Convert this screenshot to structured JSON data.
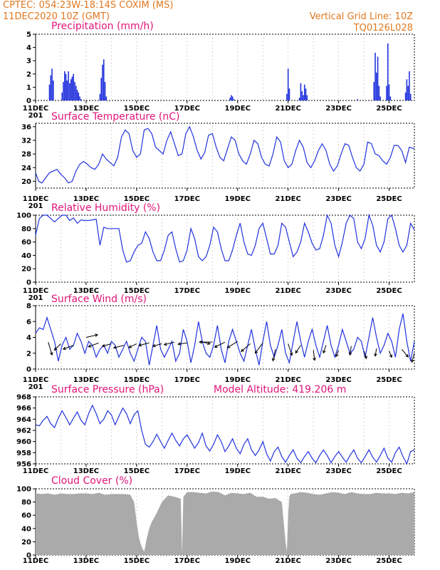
{
  "header": {
    "left_line1": "CPTEC:   054:23W-18:14S   COXIM (MS)",
    "left_line2": "11DEC2020 10Z (GMT)",
    "right_line1": "Vertical Grid Line: 10Z",
    "right_line2": "TQ0126L028"
  },
  "colors": {
    "header_text": "#e07820",
    "panel_title": "#e0157a",
    "series_line": "#2233dd",
    "precip_bar": "#2233dd",
    "cloud_fill": "#aaaaaa",
    "wind_arrow": "#000000"
  },
  "x_ticks": [
    "11DEC",
    "13DEC",
    "15DEC",
    "17DEC",
    "19DEC",
    "21DEC",
    "23DEC",
    "25DEC"
  ],
  "x_range_days": [
    0,
    15
  ],
  "chart_data": [
    {
      "id": "precip",
      "type": "bar",
      "title": "Precipitation (mm/h)",
      "ylim": [
        0,
        5
      ],
      "yticks": [
        "0",
        "1",
        "2",
        "3",
        "4",
        "5"
      ],
      "yticks_num": [
        0,
        1,
        2,
        3,
        4,
        5
      ],
      "grid": "dashed-daily",
      "xticks_extra": "201",
      "x": [
        0.55,
        0.6,
        0.65,
        0.7,
        1.05,
        1.1,
        1.15,
        1.2,
        1.25,
        1.3,
        1.35,
        1.4,
        1.45,
        1.5,
        1.55,
        1.6,
        1.65,
        1.7,
        1.75,
        1.8,
        2.55,
        2.6,
        2.65,
        2.7,
        2.75,
        2.8,
        7.7,
        7.75,
        7.8,
        7.85,
        9.95,
        10.0,
        10.05,
        10.45,
        10.5,
        10.55,
        10.6,
        10.65,
        10.7,
        10.75,
        12.75,
        13.4,
        13.45,
        13.5,
        13.55,
        13.6,
        13.65,
        13.9,
        13.95,
        14.0,
        14.05,
        14.65,
        14.7,
        14.75,
        14.8,
        14.85
      ],
      "values": [
        1.2,
        1.9,
        2.4,
        1.5,
        0.6,
        1.4,
        2.2,
        2.0,
        1.5,
        2.2,
        1.3,
        1.6,
        1.8,
        2.0,
        1.4,
        1.1,
        0.8,
        0.6,
        0.3,
        0.1,
        0.5,
        1.7,
        2.7,
        3.1,
        1.4,
        0.3,
        0.2,
        0.4,
        0.3,
        0.1,
        0.5,
        2.4,
        0.9,
        0.2,
        1.3,
        0.7,
        0.4,
        1.2,
        0.9,
        0.4,
        0.1,
        1.4,
        3.6,
        2.1,
        3.3,
        1.1,
        0.3,
        1.1,
        4.3,
        1.2,
        0.3,
        0.6,
        1.6,
        1.1,
        2.2,
        0.5
      ]
    },
    {
      "id": "temp",
      "type": "line",
      "title": "Surface Temperature (nC)",
      "ylim": [
        18,
        37
      ],
      "yticks": [
        "20",
        "24",
        "28",
        "32",
        "36"
      ],
      "yticks_num": [
        20,
        24,
        28,
        32,
        36
      ],
      "xticks_extra": "201",
      "x": [
        0,
        0.12,
        0.25,
        0.4,
        0.55,
        0.7,
        0.85,
        1.0,
        1.15,
        1.3,
        1.45,
        1.6,
        1.75,
        1.9,
        2.05,
        2.2,
        2.35,
        2.5,
        2.65,
        2.8,
        2.95,
        3.1,
        3.25,
        3.4,
        3.55,
        3.7,
        3.85,
        4.0,
        4.15,
        4.3,
        4.45,
        4.6,
        4.75,
        4.9,
        5.05,
        5.2,
        5.35,
        5.5,
        5.65,
        5.8,
        5.95,
        6.1,
        6.25,
        6.4,
        6.55,
        6.7,
        6.85,
        7.0,
        7.15,
        7.3,
        7.45,
        7.6,
        7.75,
        7.9,
        8.05,
        8.2,
        8.35,
        8.5,
        8.65,
        8.8,
        8.95,
        9.1,
        9.25,
        9.4,
        9.55,
        9.7,
        9.85,
        10.0,
        10.15,
        10.3,
        10.45,
        10.6,
        10.75,
        10.9,
        11.05,
        11.2,
        11.35,
        11.5,
        11.65,
        11.8,
        11.95,
        12.1,
        12.25,
        12.4,
        12.55,
        12.7,
        12.85,
        13.0,
        13.15,
        13.3,
        13.45,
        13.6,
        13.75,
        13.9,
        14.05,
        14.2,
        14.35,
        14.5,
        14.65,
        14.8,
        15.0
      ],
      "values": [
        22.5,
        20,
        19.5,
        21,
        22.5,
        23,
        23.5,
        22,
        21,
        19.5,
        20,
        23,
        25,
        25.8,
        25,
        24,
        23.5,
        25,
        28,
        26.5,
        25.5,
        24.5,
        27,
        33,
        35,
        34,
        29,
        27,
        28,
        35,
        35.5,
        34,
        30,
        29,
        28,
        32,
        34.5,
        31,
        27.5,
        28,
        34,
        36,
        33,
        29,
        26.5,
        28.5,
        33.5,
        34,
        30,
        27,
        26,
        29.5,
        33,
        32,
        28,
        26,
        25,
        28,
        32,
        31,
        27,
        25,
        24.5,
        28,
        33,
        31.5,
        26,
        24,
        25,
        29,
        32,
        30,
        25.5,
        24,
        26,
        29,
        31,
        29,
        25,
        23,
        24.5,
        28,
        31,
        30.5,
        27,
        24,
        23,
        25,
        31.5,
        31,
        28,
        27.5,
        26,
        25,
        27,
        30.5,
        30.5,
        29,
        25.5,
        30,
        29.5
      ]
    },
    {
      "id": "rh",
      "type": "line",
      "title": "Relative Humidity (%)",
      "ylim": [
        0,
        100
      ],
      "yticks": [
        "0",
        "20",
        "40",
        "60",
        "80",
        "100"
      ],
      "yticks_num": [
        0,
        20,
        40,
        60,
        80,
        100
      ],
      "xticks_extra": "201",
      "x": [
        0,
        0.15,
        0.3,
        0.45,
        0.6,
        0.75,
        0.9,
        1.05,
        1.2,
        1.35,
        1.5,
        1.65,
        1.8,
        1.95,
        2.1,
        2.25,
        2.4,
        2.55,
        2.7,
        2.85,
        3.0,
        3.15,
        3.3,
        3.45,
        3.6,
        3.75,
        3.9,
        4.05,
        4.2,
        4.35,
        4.5,
        4.65,
        4.8,
        4.95,
        5.1,
        5.25,
        5.4,
        5.55,
        5.7,
        5.85,
        6.0,
        6.15,
        6.3,
        6.45,
        6.6,
        6.75,
        6.9,
        7.05,
        7.2,
        7.35,
        7.5,
        7.65,
        7.8,
        7.95,
        8.1,
        8.25,
        8.4,
        8.55,
        8.7,
        8.85,
        9.0,
        9.15,
        9.3,
        9.45,
        9.6,
        9.75,
        9.9,
        10.05,
        10.2,
        10.35,
        10.5,
        10.65,
        10.8,
        10.95,
        11.1,
        11.25,
        11.4,
        11.55,
        11.7,
        11.85,
        12.0,
        12.15,
        12.3,
        12.45,
        12.6,
        12.75,
        12.9,
        13.05,
        13.2,
        13.35,
        13.5,
        13.65,
        13.8,
        13.95,
        14.1,
        14.25,
        14.4,
        14.55,
        14.7,
        14.85,
        15.0
      ],
      "values": [
        70,
        95,
        100,
        100,
        95,
        90,
        95,
        100,
        100,
        92,
        96,
        88,
        93,
        92,
        92,
        93,
        94,
        55,
        82,
        80,
        80,
        80,
        80,
        48,
        30,
        32,
        45,
        55,
        58,
        75,
        65,
        45,
        32,
        32,
        48,
        70,
        75,
        50,
        30,
        32,
        48,
        80,
        65,
        38,
        32,
        38,
        55,
        82,
        75,
        50,
        32,
        32,
        48,
        70,
        88,
        60,
        42,
        40,
        55,
        80,
        88,
        65,
        42,
        42,
        55,
        88,
        82,
        60,
        38,
        45,
        60,
        88,
        75,
        58,
        48,
        50,
        70,
        100,
        88,
        55,
        38,
        60,
        88,
        100,
        95,
        60,
        50,
        65,
        100,
        85,
        55,
        45,
        60,
        95,
        100,
        80,
        55,
        45,
        55,
        88,
        78
      ]
    },
    {
      "id": "wind",
      "type": "line",
      "title": "Surface Wind (m/s)",
      "ylim": [
        0,
        8
      ],
      "yticks": [
        "0",
        "2",
        "4",
        "6",
        "8"
      ],
      "yticks_num": [
        0,
        2,
        4,
        6,
        8
      ],
      "xticks_extra": "201",
      "x": [
        0,
        0.15,
        0.3,
        0.45,
        0.6,
        0.75,
        0.9,
        1.05,
        1.2,
        1.35,
        1.5,
        1.65,
        1.8,
        1.95,
        2.1,
        2.25,
        2.4,
        2.55,
        2.7,
        2.85,
        3.0,
        3.15,
        3.3,
        3.45,
        3.6,
        3.75,
        3.9,
        4.05,
        4.2,
        4.35,
        4.5,
        4.65,
        4.8,
        4.95,
        5.1,
        5.25,
        5.4,
        5.55,
        5.7,
        5.85,
        6.0,
        6.15,
        6.3,
        6.45,
        6.6,
        6.75,
        6.9,
        7.05,
        7.2,
        7.35,
        7.5,
        7.65,
        7.8,
        7.95,
        8.1,
        8.25,
        8.4,
        8.55,
        8.7,
        8.85,
        9.0,
        9.15,
        9.3,
        9.45,
        9.6,
        9.75,
        9.9,
        10.05,
        10.2,
        10.35,
        10.5,
        10.65,
        10.8,
        10.95,
        11.1,
        11.25,
        11.4,
        11.55,
        11.7,
        11.85,
        12.0,
        12.15,
        12.3,
        12.45,
        12.6,
        12.75,
        12.9,
        13.05,
        13.2,
        13.35,
        13.5,
        13.65,
        13.8,
        13.95,
        14.1,
        14.25,
        14.4,
        14.55,
        14.7,
        14.85,
        15.0
      ],
      "values": [
        4.5,
        5.2,
        5.0,
        6.5,
        5.0,
        3.5,
        1.0,
        3.0,
        4.0,
        2.5,
        3.0,
        4.5,
        3.5,
        2.0,
        3.5,
        3.0,
        1.5,
        2.5,
        3.0,
        2.0,
        3.5,
        3.0,
        1.5,
        2.5,
        3.5,
        2.0,
        1.0,
        2.5,
        4.0,
        3.5,
        0.5,
        3.0,
        5.5,
        2.5,
        1.5,
        2.5,
        3.5,
        1.0,
        2.0,
        5.0,
        3.5,
        0.8,
        3.0,
        6.0,
        3.5,
        2.0,
        1.5,
        3.0,
        5.5,
        2.5,
        0.8,
        3.5,
        5.0,
        3.5,
        2.0,
        1.0,
        3.0,
        5.0,
        2.5,
        0.5,
        3.5,
        6.0,
        3.0,
        1.5,
        3.0,
        5.0,
        2.0,
        0.8,
        3.5,
        6.0,
        3.5,
        1.5,
        3.5,
        5.0,
        3.0,
        1.5,
        3.5,
        5.5,
        3.0,
        1.5,
        3.0,
        5.0,
        3.5,
        2.0,
        2.5,
        4.0,
        3.5,
        1.5,
        4.0,
        6.5,
        4.0,
        2.0,
        3.0,
        4.5,
        3.5,
        1.5,
        5.0,
        7.0,
        3.5,
        1.0,
        3.5
      ],
      "arrows": {
        "x": [
          0.5,
          1.0,
          1.5,
          2.0,
          2.5,
          3.0,
          3.5,
          4.0,
          4.5,
          5.0,
          5.5,
          6.0,
          6.5,
          7.0,
          7.5,
          8.0,
          8.5,
          9.0,
          9.5,
          10.0,
          10.5,
          11.0,
          11.5,
          12.0,
          12.5,
          13.0,
          13.5,
          14.0,
          14.5,
          15.0
        ],
        "y": [
          3.4,
          3.2,
          3.0,
          4.0,
          3.3,
          3.2,
          3.0,
          3.2,
          3.3,
          3.2,
          3.4,
          3.3,
          3.5,
          3.4,
          3.4,
          3.5,
          3.2,
          3.3,
          2.5,
          3.2,
          3.0,
          2.4,
          3.0,
          2.4,
          2.9,
          2.3,
          2.6,
          2.3,
          2.5,
          2.0
        ],
        "u": [
          0.3,
          -0.5,
          -0.8,
          0.9,
          -0.8,
          -0.7,
          -0.8,
          -0.6,
          -0.8,
          -0.7,
          -0.8,
          -0.7,
          0.8,
          -1.0,
          -0.8,
          -0.8,
          -0.7,
          -0.6,
          -0.2,
          0.3,
          -0.4,
          0.1,
          -0.2,
          -0.2,
          -0.1,
          0.2,
          -0.1,
          0.2,
          0.5,
          -0.2
        ],
        "v": [
          -1.0,
          -0.5,
          -0.3,
          0.2,
          -0.3,
          -0.2,
          -0.2,
          -0.3,
          -0.2,
          -0.2,
          -0.2,
          -0.1,
          -0.2,
          0.0,
          -0.4,
          -0.5,
          -0.6,
          -0.8,
          -0.9,
          -0.9,
          -0.6,
          -0.8,
          -0.6,
          -0.5,
          -0.7,
          -0.6,
          -0.6,
          -0.5,
          -0.6,
          -0.7
        ]
      }
    },
    {
      "id": "pressure",
      "type": "line",
      "title": "Surface Pressure (hPa)",
      "extra_label": "Model Altitude: 419.206 m",
      "ylim": [
        956,
        968
      ],
      "yticks": [
        "956",
        "958",
        "960",
        "962",
        "964",
        "966",
        "968"
      ],
      "yticks_num": [
        956,
        958,
        960,
        962,
        964,
        966,
        968
      ],
      "x": [
        0,
        0.15,
        0.3,
        0.45,
        0.6,
        0.75,
        0.9,
        1.05,
        1.2,
        1.35,
        1.5,
        1.65,
        1.8,
        1.95,
        2.1,
        2.25,
        2.4,
        2.55,
        2.7,
        2.85,
        3.0,
        3.15,
        3.3,
        3.45,
        3.6,
        3.75,
        3.9,
        4.05,
        4.2,
        4.35,
        4.5,
        4.65,
        4.8,
        4.95,
        5.1,
        5.25,
        5.4,
        5.55,
        5.7,
        5.85,
        6.0,
        6.15,
        6.3,
        6.45,
        6.6,
        6.75,
        6.9,
        7.05,
        7.2,
        7.35,
        7.5,
        7.65,
        7.8,
        7.95,
        8.1,
        8.25,
        8.4,
        8.55,
        8.7,
        8.85,
        9.0,
        9.15,
        9.3,
        9.45,
        9.6,
        9.75,
        9.9,
        10.05,
        10.2,
        10.35,
        10.5,
        10.65,
        10.8,
        10.95,
        11.1,
        11.25,
        11.4,
        11.55,
        11.7,
        11.85,
        12.0,
        12.15,
        12.3,
        12.45,
        12.6,
        12.75,
        12.9,
        13.05,
        13.2,
        13.35,
        13.5,
        13.65,
        13.8,
        13.95,
        14.1,
        14.25,
        14.4,
        14.55,
        14.7,
        14.85,
        15.0
      ],
      "values": [
        963,
        962.8,
        963.8,
        964.5,
        963.2,
        962.5,
        964.2,
        965.5,
        964.3,
        963,
        964.2,
        965.3,
        963.8,
        963,
        965,
        966.5,
        965,
        963.2,
        964,
        965.5,
        964.8,
        963,
        964.5,
        966,
        965,
        963.2,
        964.8,
        965.5,
        962,
        959.5,
        959,
        960,
        961.3,
        960,
        958.8,
        960.2,
        961.5,
        960.2,
        959.2,
        960.5,
        961.2,
        960,
        958.8,
        959.8,
        961.5,
        959.2,
        958.3,
        959.5,
        961.2,
        960,
        958.2,
        959.2,
        960.5,
        958.8,
        957.8,
        959.5,
        960.5,
        958.5,
        957.5,
        958.5,
        960,
        957.8,
        956.5,
        958.2,
        959,
        957.3,
        956.3,
        957.5,
        958.5,
        957,
        956.2,
        957.3,
        958.2,
        957,
        956.2,
        957.5,
        958.5,
        957.5,
        956.2,
        957.3,
        958.2,
        957.2,
        956.3,
        957.5,
        958.5,
        957,
        956.2,
        957.3,
        958.5,
        957.2,
        956.3,
        957.5,
        958.8,
        957,
        956.3,
        958,
        959,
        957.3,
        956,
        958.2,
        958.5
      ]
    },
    {
      "id": "cloud",
      "type": "area",
      "title": "Cloud Cover (%)",
      "ylim": [
        0,
        100
      ],
      "yticks": [
        "0",
        "20",
        "40",
        "60",
        "80",
        "100"
      ],
      "yticks_num": [
        0,
        20,
        40,
        60,
        80,
        100
      ],
      "x": [
        0,
        0.25,
        0.5,
        0.75,
        1.0,
        1.25,
        1.5,
        1.75,
        2.0,
        2.25,
        2.5,
        2.75,
        3.0,
        3.25,
        3.5,
        3.75,
        3.9,
        4.0,
        4.1,
        4.2,
        4.3,
        4.4,
        4.5,
        4.6,
        4.75,
        5.0,
        5.25,
        5.5,
        5.75,
        5.8,
        5.85,
        6.0,
        6.25,
        6.5,
        6.75,
        7.0,
        7.25,
        7.5,
        7.75,
        8.0,
        8.25,
        8.5,
        8.75,
        9.0,
        9.25,
        9.5,
        9.75,
        9.9,
        9.95,
        10.0,
        10.05,
        10.1,
        10.25,
        10.5,
        10.75,
        11.0,
        11.25,
        11.5,
        11.75,
        12.0,
        12.25,
        12.5,
        12.75,
        13.0,
        13.25,
        13.5,
        13.75,
        14.0,
        14.25,
        14.5,
        14.75,
        15.0
      ],
      "values": [
        93,
        92,
        93,
        91,
        93,
        92,
        92,
        93,
        93,
        92,
        94,
        91,
        92,
        92,
        92,
        91,
        80,
        50,
        25,
        12,
        5,
        25,
        40,
        50,
        60,
        80,
        90,
        88,
        85,
        2,
        88,
        95,
        95,
        94,
        93,
        96,
        95,
        90,
        94,
        93,
        92,
        94,
        88,
        88,
        85,
        86,
        80,
        20,
        5,
        60,
        88,
        92,
        93,
        95,
        94,
        92,
        91,
        93,
        95,
        94,
        92,
        95,
        93,
        92,
        92,
        94,
        93,
        93,
        92,
        94,
        93,
        95
      ]
    }
  ]
}
